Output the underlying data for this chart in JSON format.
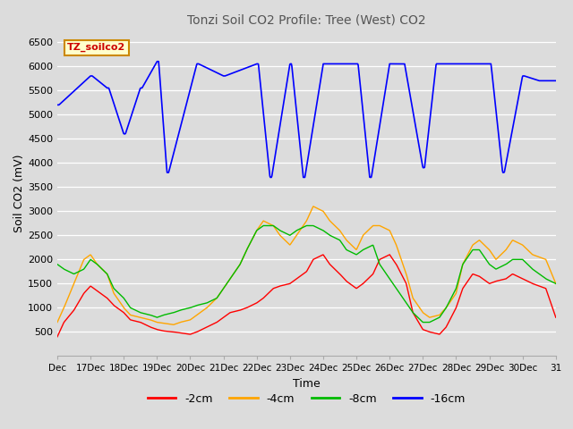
{
  "title": "Tonzi Soil CO2 Profile: Tree (West) CO2",
  "xlabel": "Time",
  "ylabel": "Soil CO2 (mV)",
  "background_color": "#dcdcdc",
  "legend_label": "TZ_soilco2",
  "legend_bg": "#ffffcc",
  "legend_edge": "#cc8800",
  "xlim": [
    0,
    15
  ],
  "ylim": [
    0,
    6750
  ],
  "yticks": [
    500,
    1000,
    1500,
    2000,
    2500,
    3000,
    3500,
    4000,
    4500,
    5000,
    5500,
    6000,
    6500
  ],
  "xtick_positions": [
    0,
    1,
    2,
    3,
    4,
    5,
    6,
    7,
    8,
    9,
    10,
    11,
    12,
    13,
    14,
    15
  ],
  "xtick_labels": [
    "Dec",
    "17Dec",
    "18Dec",
    "19Dec",
    "20Dec",
    "21Dec",
    "22Dec",
    "23Dec",
    "24Dec",
    "25Dec",
    "26Dec",
    "27Dec",
    "28Dec",
    "29Dec",
    "30Dec",
    "31"
  ],
  "minus2cm_color": "#ff0000",
  "minus4cm_color": "#ffa500",
  "minus8cm_color": "#00bb00",
  "minus16cm_color": "#0000ff",
  "minus2cm_label": "-2cm",
  "minus4cm_label": "-4cm",
  "minus8cm_label": "-8cm",
  "minus16cm_label": "-16cm",
  "minus2cm_x": [
    0,
    0.2,
    0.5,
    0.8,
    1.0,
    1.2,
    1.5,
    1.7,
    2.0,
    2.2,
    2.5,
    2.8,
    3.0,
    3.2,
    3.5,
    3.7,
    4.0,
    4.2,
    4.5,
    4.8,
    5.0,
    5.2,
    5.5,
    5.7,
    6.0,
    6.2,
    6.5,
    6.7,
    7.0,
    7.2,
    7.5,
    7.7,
    8.0,
    8.2,
    8.5,
    8.7,
    9.0,
    9.2,
    9.5,
    9.7,
    10.0,
    10.2,
    10.5,
    10.7,
    11.0,
    11.2,
    11.5,
    11.7,
    12.0,
    12.2,
    12.5,
    12.7,
    13.0,
    13.2,
    13.5,
    13.7,
    14.0,
    14.3,
    14.7,
    15.0
  ],
  "minus2cm_y": [
    400,
    700,
    950,
    1300,
    1450,
    1350,
    1200,
    1050,
    900,
    750,
    700,
    600,
    550,
    520,
    500,
    480,
    450,
    500,
    600,
    700,
    800,
    900,
    950,
    1000,
    1100,
    1200,
    1400,
    1450,
    1500,
    1600,
    1750,
    2000,
    2100,
    1900,
    1700,
    1550,
    1400,
    1500,
    1700,
    2000,
    2100,
    1900,
    1500,
    900,
    550,
    500,
    450,
    600,
    1000,
    1400,
    1700,
    1650,
    1500,
    1550,
    1600,
    1700,
    1600,
    1500,
    1400,
    800
  ],
  "minus4cm_x": [
    0,
    0.2,
    0.5,
    0.8,
    1.0,
    1.2,
    1.5,
    1.7,
    2.0,
    2.2,
    2.5,
    2.8,
    3.0,
    3.2,
    3.5,
    3.7,
    4.0,
    4.2,
    4.5,
    4.8,
    5.0,
    5.2,
    5.5,
    5.7,
    6.0,
    6.2,
    6.5,
    6.7,
    7.0,
    7.2,
    7.5,
    7.7,
    8.0,
    8.2,
    8.5,
    8.7,
    9.0,
    9.2,
    9.5,
    9.7,
    10.0,
    10.2,
    10.5,
    10.7,
    11.0,
    11.2,
    11.5,
    11.7,
    12.0,
    12.2,
    12.5,
    12.7,
    13.0,
    13.2,
    13.5,
    13.7,
    14.0,
    14.3,
    14.7,
    15.0
  ],
  "minus4cm_y": [
    700,
    1000,
    1500,
    2000,
    2100,
    1900,
    1700,
    1300,
    1000,
    850,
    800,
    750,
    700,
    680,
    650,
    700,
    750,
    850,
    1000,
    1200,
    1400,
    1600,
    1900,
    2200,
    2600,
    2800,
    2700,
    2500,
    2300,
    2500,
    2800,
    3100,
    3000,
    2800,
    2600,
    2400,
    2200,
    2500,
    2700,
    2700,
    2600,
    2300,
    1700,
    1200,
    900,
    800,
    850,
    1000,
    1300,
    1900,
    2300,
    2400,
    2200,
    2000,
    2200,
    2400,
    2300,
    2100,
    2000,
    1500
  ],
  "minus8cm_x": [
    0,
    0.2,
    0.5,
    0.8,
    1.0,
    1.2,
    1.5,
    1.7,
    2.0,
    2.2,
    2.5,
    2.8,
    3.0,
    3.2,
    3.5,
    3.7,
    4.0,
    4.2,
    4.5,
    4.8,
    5.0,
    5.2,
    5.5,
    5.7,
    6.0,
    6.2,
    6.5,
    6.7,
    7.0,
    7.2,
    7.5,
    7.7,
    8.0,
    8.2,
    8.5,
    8.7,
    9.0,
    9.2,
    9.5,
    9.7,
    10.0,
    10.2,
    10.5,
    10.7,
    11.0,
    11.2,
    11.5,
    11.7,
    12.0,
    12.2,
    12.5,
    12.7,
    13.0,
    13.2,
    13.5,
    13.7,
    14.0,
    14.3,
    14.7,
    15.0
  ],
  "minus8cm_y": [
    1900,
    1800,
    1700,
    1800,
    2000,
    1900,
    1700,
    1400,
    1200,
    1000,
    900,
    850,
    800,
    850,
    900,
    950,
    1000,
    1050,
    1100,
    1200,
    1400,
    1600,
    1900,
    2200,
    2600,
    2700,
    2700,
    2600,
    2500,
    2600,
    2700,
    2700,
    2600,
    2500,
    2400,
    2200,
    2100,
    2200,
    2300,
    1900,
    1600,
    1400,
    1100,
    900,
    700,
    700,
    800,
    1000,
    1400,
    1900,
    2200,
    2200,
    1900,
    1800,
    1900,
    2000,
    2000,
    1800,
    1600,
    1500
  ],
  "minus16cm_x": [
    0,
    0.05,
    1.0,
    1.05,
    1.5,
    1.55,
    2.0,
    2.05,
    2.5,
    2.55,
    3.0,
    3.05,
    3.3,
    3.35,
    4.2,
    4.25,
    5.0,
    5.05,
    6.0,
    6.05,
    6.4,
    6.45,
    7.0,
    7.05,
    7.4,
    7.45,
    8.0,
    8.05,
    9.0,
    9.05,
    9.4,
    9.45,
    10.0,
    10.05,
    10.4,
    10.45,
    11.0,
    11.05,
    11.4,
    11.45,
    12.0,
    12.05,
    13.0,
    13.05,
    13.4,
    13.45,
    14.0,
    14.05,
    14.5,
    14.55,
    15.0
  ],
  "minus16cm_y": [
    5200,
    5200,
    5800,
    5800,
    5550,
    5550,
    4600,
    4600,
    5550,
    5550,
    6100,
    6100,
    3800,
    3800,
    6050,
    6050,
    5800,
    5800,
    6050,
    6050,
    3700,
    3700,
    6050,
    6050,
    3700,
    3700,
    6050,
    6050,
    6050,
    6050,
    3700,
    3700,
    6050,
    6050,
    6050,
    6050,
    3900,
    3900,
    6050,
    6050,
    6050,
    6050,
    6050,
    6050,
    3800,
    3800,
    5800,
    5800,
    5700,
    5700,
    5700
  ]
}
